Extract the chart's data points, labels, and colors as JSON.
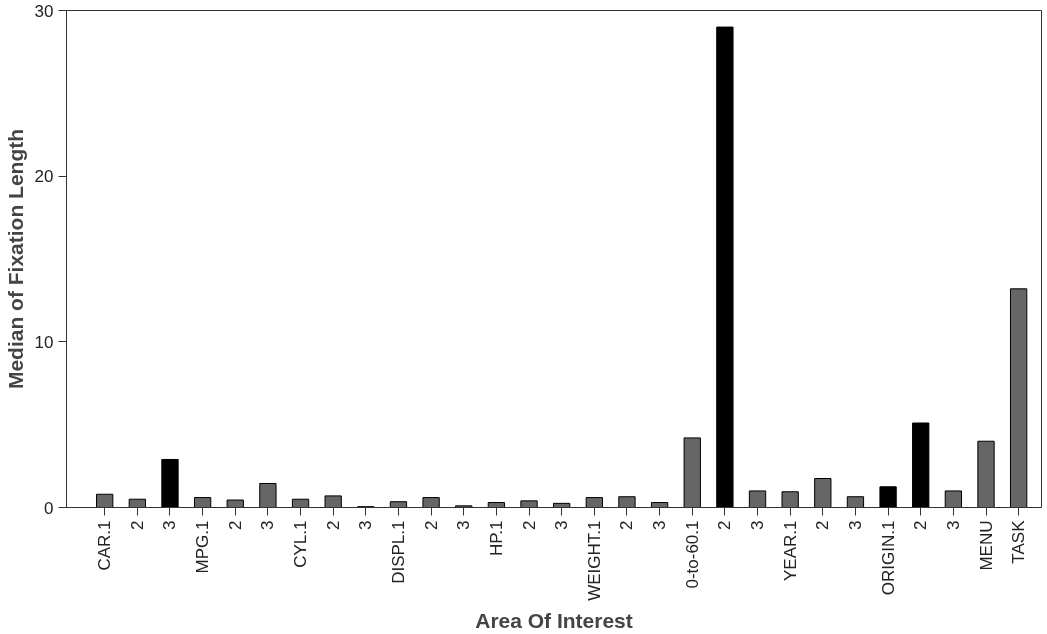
{
  "chart_data": {
    "type": "bar",
    "xlabel": "Area Of Interest",
    "ylabel": "Median of Fixation Length",
    "categories": [
      "CAR.1",
      "2",
      "3",
      "MPG.1",
      "2",
      "3",
      "CYL.1",
      "2",
      "3",
      "DISPL.1",
      "2",
      "3",
      "HP.1",
      "2",
      "3",
      "WEIGHT.1",
      "2",
      "3",
      "0-to-60.1",
      "2",
      "3",
      "YEAR.1",
      "2",
      "3",
      "ORIGIN.1",
      "2",
      "3",
      "MENU",
      "TASK"
    ],
    "values": [
      0.8,
      0.5,
      2.9,
      0.6,
      0.45,
      1.45,
      0.5,
      0.7,
      0.05,
      0.35,
      0.6,
      0.1,
      0.3,
      0.4,
      0.25,
      0.6,
      0.65,
      0.3,
      4.2,
      29.0,
      1.0,
      0.95,
      1.75,
      0.65,
      1.25,
      5.1,
      1.0,
      4.0,
      13.2
    ],
    "colors": [
      "#666666",
      "#666666",
      "#000000",
      "#666666",
      "#666666",
      "#666666",
      "#666666",
      "#666666",
      "#666666",
      "#666666",
      "#666666",
      "#666666",
      "#666666",
      "#666666",
      "#666666",
      "#666666",
      "#666666",
      "#666666",
      "#666666",
      "#000000",
      "#666666",
      "#666666",
      "#666666",
      "#666666",
      "#000000",
      "#000000",
      "#666666",
      "#666666",
      "#666666"
    ],
    "ylim": [
      0,
      30
    ],
    "yticks": [
      0,
      10,
      20,
      30
    ],
    "grid": false
  }
}
